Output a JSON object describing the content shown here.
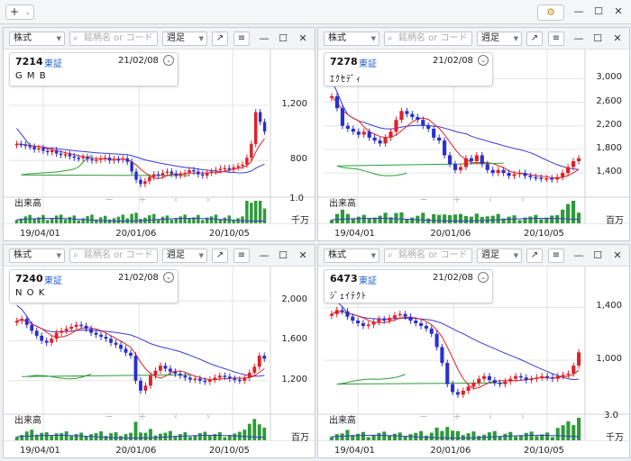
{
  "appbar": {
    "add_label": "+",
    "add_chevron": "⌄",
    "settings_icon": "gear-icon",
    "minimize": "—",
    "maximize": "☐",
    "close": "✕"
  },
  "colors": {
    "up": "#e0202a",
    "down": "#2a2fd0",
    "ma_short": "#e02020",
    "ma_long": "#3a3ad0",
    "ma_mid": "#2f9a3a",
    "volume": "#2e9a3a"
  },
  "toolbar": {
    "market": "株式",
    "search_placeholder": "銘柄名 or コード",
    "period": "週足",
    "popout_icon": "↗",
    "menu_icon": "≡",
    "minimize": "—",
    "maximize": "☐",
    "close": "✕"
  },
  "volume_title": "出来高",
  "nav": {
    "minus": "−",
    "plus": "+",
    "prev": "‹",
    "next": "›"
  },
  "x_labels": [
    "19/04/01",
    "20/01/06",
    "20/10/05"
  ],
  "panels": [
    {
      "code": "7214",
      "exchange": "東証",
      "date": "21/02/08",
      "name": "G M B",
      "y_labels": [
        "1,200",
        "800"
      ],
      "volume_scale": "1.0",
      "volume_unit": "千万",
      "chart_data": {
        "type": "candlestick",
        "y_ticks": [
          1200,
          800
        ],
        "ylim": [
          560,
          1500
        ],
        "closes": [
          920,
          915,
          905,
          900,
          880,
          890,
          870,
          860,
          875,
          850,
          840,
          845,
          830,
          820,
          815,
          825,
          810,
          800,
          805,
          815,
          820,
          800,
          810,
          805,
          815,
          790,
          720,
          660,
          630,
          650,
          680,
          700,
          690,
          710,
          720,
          705,
          690,
          700,
          710,
          730,
          720,
          700,
          690,
          710,
          720,
          730,
          740,
          745,
          735,
          750,
          760,
          770,
          820,
          920,
          1150,
          1080,
          1010
        ]
      }
    },
    {
      "code": "7278",
      "exchange": "東証",
      "date": "21/02/08",
      "name": "ｴｸｾﾃﾞｨ",
      "y_labels": [
        "3,000",
        "2,600",
        "2,200",
        "1,800",
        "1,400"
      ],
      "volume_scale": "",
      "volume_unit": "百万",
      "chart_data": {
        "type": "candlestick",
        "y_ticks": [
          3000,
          2600,
          2200,
          1800,
          1400
        ],
        "ylim": [
          1050,
          3250
        ],
        "closes": [
          2700,
          2500,
          2200,
          2150,
          2100,
          2050,
          2100,
          2000,
          1950,
          1900,
          2000,
          2100,
          2300,
          2450,
          2400,
          2350,
          2300,
          2200,
          2150,
          2000,
          1950,
          1700,
          1550,
          1450,
          1500,
          1650,
          1600,
          1700,
          1550,
          1450,
          1400,
          1450,
          1400,
          1350,
          1380,
          1400,
          1350,
          1330,
          1320,
          1300,
          1310,
          1290,
          1330,
          1400,
          1500,
          1600,
          1650
        ]
      }
    },
    {
      "code": "7240",
      "exchange": "東証",
      "date": "21/02/08",
      "name": "N O K",
      "y_labels": [
        "2,000",
        "1,600",
        "1,200"
      ],
      "volume_scale": "",
      "volume_unit": "百万",
      "chart_data": {
        "type": "candlestick",
        "y_ticks": [
          2000,
          1600,
          1200
        ],
        "ylim": [
          900,
          2200
        ],
        "closes": [
          1800,
          1820,
          1760,
          1700,
          1650,
          1600,
          1580,
          1620,
          1680,
          1700,
          1720,
          1740,
          1760,
          1750,
          1720,
          1680,
          1660,
          1640,
          1620,
          1580,
          1560,
          1520,
          1480,
          1450,
          1200,
          1100,
          1150,
          1250,
          1300,
          1350,
          1320,
          1290,
          1270,
          1250,
          1230,
          1210,
          1220,
          1200,
          1190,
          1210,
          1230,
          1250,
          1240,
          1220,
          1210,
          1200,
          1230,
          1280,
          1340,
          1450,
          1420
        ]
      }
    },
    {
      "code": "6473",
      "exchange": "東証",
      "date": "21/02/08",
      "name": "ｼﾞｪｲﾃｸﾄ",
      "y_labels": [
        "1,400",
        "1,000"
      ],
      "volume_scale": "3.0",
      "volume_unit": "千万",
      "chart_data": {
        "type": "candlestick",
        "y_ticks": [
          1400,
          1000
        ],
        "ylim": [
          620,
          1600
        ],
        "closes": [
          1350,
          1380,
          1370,
          1330,
          1300,
          1280,
          1260,
          1270,
          1290,
          1310,
          1300,
          1320,
          1340,
          1350,
          1330,
          1300,
          1280,
          1260,
          1240,
          1200,
          1100,
          980,
          820,
          760,
          740,
          770,
          800,
          830,
          860,
          880,
          850,
          830,
          820,
          840,
          860,
          880,
          870,
          850,
          860,
          870,
          880,
          870,
          860,
          880,
          890,
          900,
          960,
          1060
        ]
      }
    }
  ]
}
